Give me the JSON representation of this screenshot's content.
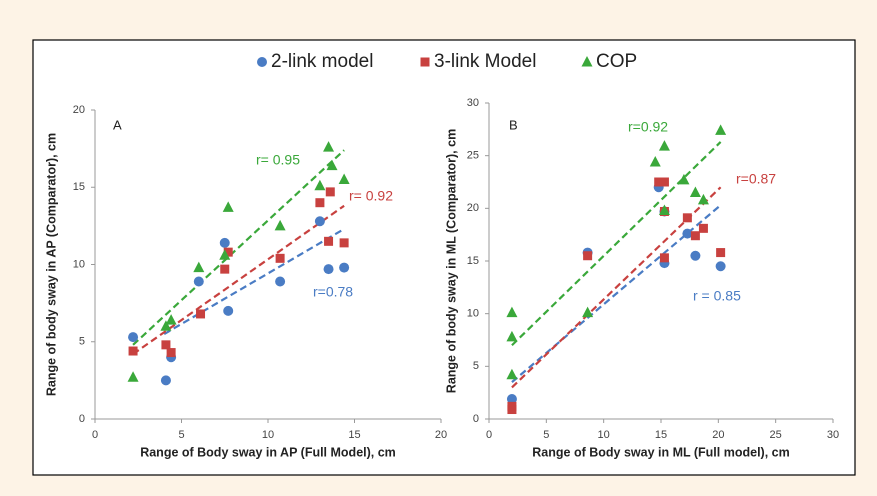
{
  "chart_data": [
    {
      "type": "scatter",
      "label": "A",
      "x_label": "Range of Body sway in AP (Full Model), cm",
      "y_label": "Range of body sway in AP (Comparator), cm",
      "xlim": [
        0,
        20
      ],
      "xticks": [
        0,
        5,
        10,
        15,
        20
      ],
      "ylim": [
        0,
        20
      ],
      "yticks": [
        0,
        5,
        10,
        15,
        20
      ],
      "series": [
        {
          "name": "2-link model",
          "color": "#4a7cc4",
          "marker": "circle",
          "x": [
            2.2,
            4.1,
            4.4,
            6,
            7.5,
            7.7,
            10.7,
            13,
            13.5,
            14.4
          ],
          "values": [
            5.3,
            2.5,
            4.0,
            8.9,
            11.4,
            7.0,
            8.9,
            12.8,
            9.7,
            9.8
          ]
        },
        {
          "name": "3-link Model",
          "color": "#c8413f",
          "marker": "square",
          "x": [
            2.2,
            4.1,
            4.4,
            6.1,
            7.5,
            7.7,
            10.7,
            13,
            13.5,
            13.6,
            14.4
          ],
          "values": [
            4.4,
            4.8,
            4.3,
            6.8,
            9.7,
            10.8,
            10.4,
            14,
            11.5,
            14.7,
            11.4
          ]
        },
        {
          "name": "COP",
          "color": "#3aa83a",
          "marker": "triangle",
          "x": [
            2.2,
            4.1,
            4.4,
            6,
            7.5,
            7.7,
            10.7,
            13,
            13.5,
            13.7,
            14.4
          ],
          "values": [
            2.7,
            6.0,
            6.4,
            9.8,
            10.6,
            13.7,
            12.5,
            15.1,
            17.6,
            16.4,
            15.5
          ]
        }
      ],
      "trendlines": [
        {
          "color": "#4a7cc4",
          "x": [
            4,
            14.4
          ],
          "values": [
            5.5,
            12.3
          ],
          "label": "r=0.78"
        },
        {
          "color": "#c8413f",
          "x": [
            2.2,
            14.4
          ],
          "values": [
            4.2,
            13.8
          ],
          "label": "r= 0.92"
        },
        {
          "color": "#3aa83a",
          "x": [
            2.2,
            14.4
          ],
          "values": [
            4.8,
            17.4
          ],
          "label": "r= 0.95"
        }
      ]
    },
    {
      "type": "scatter",
      "label": "B",
      "x_label": "Range of Body sway in ML (Full model), cm",
      "y_label": "Range of body sway in ML (Comparator), cm",
      "xlim": [
        0,
        30
      ],
      "xticks": [
        0,
        5,
        10,
        15,
        20,
        25,
        30
      ],
      "ylim": [
        0,
        30
      ],
      "yticks": [
        0,
        5,
        10,
        15,
        20,
        25,
        30
      ],
      "series": [
        {
          "color": "#4a7cc4",
          "marker": "circle",
          "x": [
            2,
            8.6,
            14.8,
            15.3,
            15.3,
            17.3,
            18,
            20.2
          ],
          "values": [
            1.9,
            15.8,
            22.0,
            14.8,
            19.7,
            17.6,
            15.5,
            14.5
          ]
        },
        {
          "color": "#c8413f",
          "marker": "square",
          "x": [
            2,
            2,
            8.6,
            14.8,
            15.3,
            15.3,
            15.3,
            17.3,
            18,
            18.7,
            20.2
          ],
          "values": [
            0.9,
            1.2,
            15.5,
            22.5,
            22.5,
            15.3,
            19.7,
            19.1,
            17.4,
            18.1,
            15.8
          ]
        },
        {
          "color": "#3aa83a",
          "marker": "triangle",
          "x": [
            2,
            2,
            2,
            8.6,
            14.5,
            15.3,
            15.3,
            17,
            18,
            18.7,
            20.2
          ],
          "values": [
            10.1,
            7.8,
            4.2,
            10.1,
            24.4,
            25.9,
            19.8,
            22.7,
            21.5,
            20.8,
            27.4
          ]
        }
      ],
      "trendlines": [
        {
          "color": "#4a7cc4",
          "x": [
            2,
            20.2
          ],
          "values": [
            3.5,
            20.3
          ],
          "label": "r = 0.85"
        },
        {
          "color": "#c8413f",
          "x": [
            2,
            20.2
          ],
          "values": [
            3,
            22
          ],
          "label": "r=0.87"
        },
        {
          "color": "#3aa83a",
          "x": [
            2,
            20.2
          ],
          "values": [
            7,
            26.3
          ],
          "label": "r=0.92"
        }
      ]
    }
  ]
}
